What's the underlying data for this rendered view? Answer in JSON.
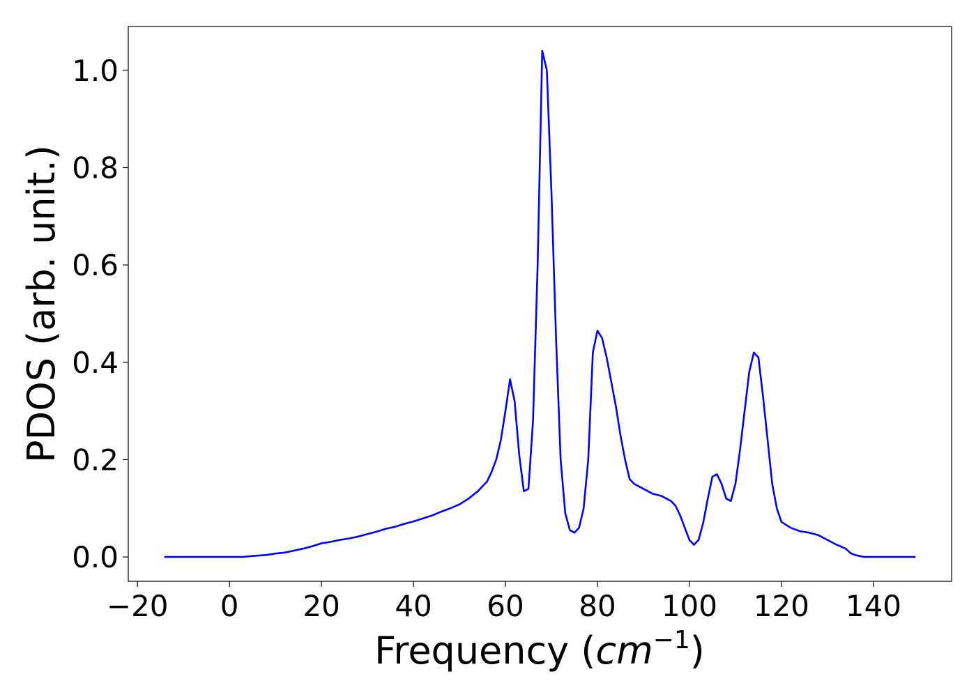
{
  "chart_data": {
    "type": "line",
    "xlabel": "Frequency (",
    "xlabel_math": "cm",
    "xlabel_exponent": "−1",
    "xlabel_close": ")",
    "ylabel": "PDOS (arb. unit.)",
    "xlim": [
      -22,
      157
    ],
    "ylim": [
      -0.05,
      1.09
    ],
    "x_ticks": [
      -20,
      0,
      20,
      40,
      60,
      80,
      100,
      120,
      140
    ],
    "x_tick_labels": [
      "−20",
      "0",
      "20",
      "40",
      "60",
      "80",
      "100",
      "120",
      "140"
    ],
    "y_ticks": [
      0.0,
      0.2,
      0.4,
      0.6,
      0.8,
      1.0
    ],
    "y_tick_labels": [
      "0.0",
      "0.2",
      "0.4",
      "0.6",
      "0.8",
      "1.0"
    ],
    "grid": false,
    "series": [
      {
        "color": "#0000ff",
        "x": [
          -14,
          -10,
          -5,
          0,
          3,
          5,
          8,
          10,
          12,
          14,
          16,
          18,
          20,
          22,
          24,
          26,
          28,
          30,
          32,
          34,
          36,
          38,
          40,
          42,
          44,
          46,
          48,
          50,
          52,
          54,
          56,
          57,
          58,
          59,
          60,
          61,
          62,
          63,
          64,
          65,
          66,
          67,
          68,
          69,
          70,
          71,
          72,
          73,
          74,
          75,
          76,
          77,
          78,
          79,
          80,
          81,
          82,
          83,
          84,
          85,
          86,
          87,
          88,
          90,
          92,
          94,
          96,
          97,
          98,
          99,
          100,
          101,
          102,
          103,
          104,
          105,
          106,
          107,
          108,
          109,
          110,
          111,
          112,
          113,
          114,
          115,
          116,
          117,
          118,
          119,
          120,
          122,
          124,
          126,
          128,
          130,
          132,
          134,
          135,
          136,
          137,
          138,
          140,
          145,
          149
        ],
        "y": [
          0.0,
          0.0,
          0.0,
          0.0,
          0.0,
          0.002,
          0.004,
          0.007,
          0.009,
          0.013,
          0.017,
          0.022,
          0.028,
          0.031,
          0.035,
          0.038,
          0.042,
          0.047,
          0.052,
          0.058,
          0.062,
          0.068,
          0.073,
          0.079,
          0.085,
          0.093,
          0.1,
          0.108,
          0.12,
          0.135,
          0.155,
          0.175,
          0.2,
          0.24,
          0.3,
          0.365,
          0.32,
          0.21,
          0.135,
          0.14,
          0.28,
          0.6,
          1.04,
          1.0,
          0.75,
          0.45,
          0.2,
          0.09,
          0.055,
          0.05,
          0.06,
          0.1,
          0.2,
          0.42,
          0.465,
          0.45,
          0.41,
          0.36,
          0.31,
          0.25,
          0.2,
          0.16,
          0.15,
          0.14,
          0.13,
          0.125,
          0.115,
          0.105,
          0.085,
          0.06,
          0.035,
          0.025,
          0.035,
          0.07,
          0.12,
          0.165,
          0.17,
          0.15,
          0.12,
          0.115,
          0.15,
          0.22,
          0.3,
          0.38,
          0.42,
          0.41,
          0.33,
          0.24,
          0.15,
          0.1,
          0.072,
          0.06,
          0.053,
          0.05,
          0.045,
          0.035,
          0.025,
          0.017,
          0.008,
          0.004,
          0.002,
          0.0,
          0.0,
          0.0,
          0.0
        ]
      }
    ]
  }
}
